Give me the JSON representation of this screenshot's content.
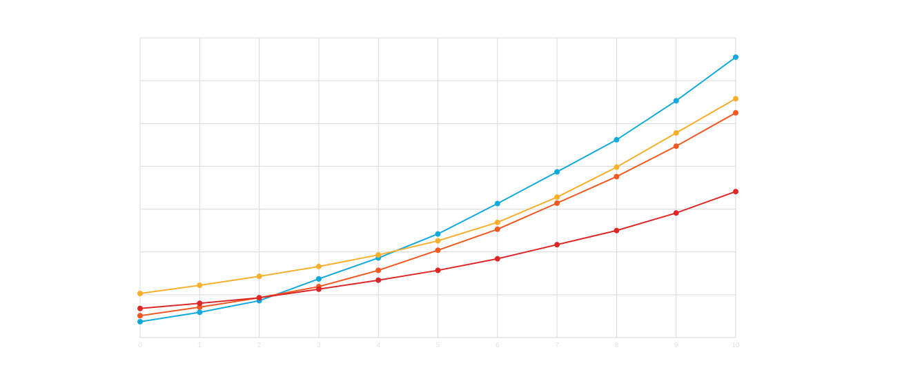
{
  "chart_data": {
    "type": "line",
    "title": "",
    "xlabel": "",
    "ylabel": "",
    "x": [
      0,
      1,
      2,
      3,
      4,
      5,
      6,
      7,
      8,
      9,
      10
    ],
    "x_tick_labels": [
      "0",
      "1",
      "2",
      "3",
      "4",
      "5",
      "6",
      "7",
      "8",
      "9",
      "10"
    ],
    "xlim": [
      0,
      10
    ],
    "ylim": [
      0,
      7
    ],
    "y_grid_lines": 7,
    "grid": true,
    "legend": "none",
    "series": [
      {
        "color": "#0fa9e0",
        "values": [
          0.37,
          0.59,
          0.86,
          1.37,
          1.86,
          2.42,
          3.13,
          3.87,
          4.62,
          5.53,
          6.55
        ]
      },
      {
        "color": "#f9ae2c",
        "values": [
          1.03,
          1.22,
          1.43,
          1.66,
          1.93,
          2.26,
          2.69,
          3.28,
          3.98,
          4.78,
          5.58
        ]
      },
      {
        "color": "#f25820",
        "values": [
          0.51,
          0.71,
          0.93,
          1.19,
          1.57,
          2.04,
          2.53,
          3.14,
          3.76,
          4.47,
          5.25
        ]
      },
      {
        "color": "#de2828",
        "values": [
          0.68,
          0.8,
          0.93,
          1.13,
          1.34,
          1.57,
          1.84,
          2.17,
          2.5,
          2.91,
          3.41
        ]
      }
    ]
  }
}
